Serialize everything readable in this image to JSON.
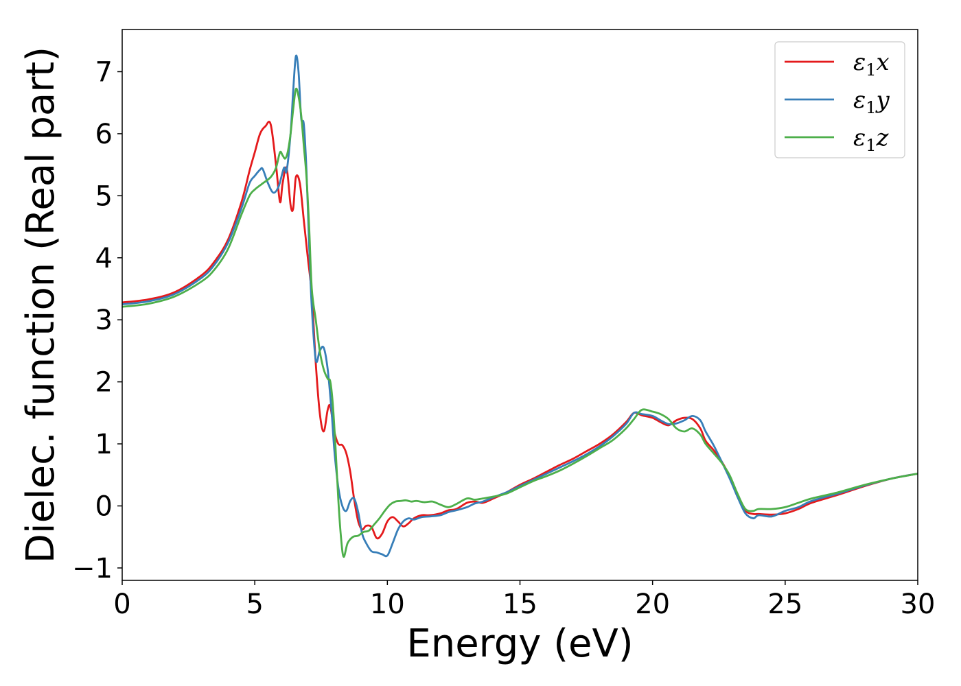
{
  "chart_data": {
    "type": "line",
    "xlabel": "Energy (eV)",
    "ylabel": "Dielec. function (Real part)",
    "xlim": [
      0,
      30
    ],
    "ylim": [
      -1.2,
      7.68
    ],
    "grid": false,
    "legend_position": "top-right",
    "x_ticks": [
      0,
      5,
      10,
      15,
      20,
      25,
      30
    ],
    "x_tick_labels": [
      "0",
      "5",
      "10",
      "15",
      "20",
      "25",
      "30"
    ],
    "y_ticks": [
      -1,
      0,
      1,
      2,
      3,
      4,
      5,
      6,
      7
    ],
    "y_tick_labels": [
      "−1",
      "0",
      "1",
      "2",
      "3",
      "4",
      "5",
      "6",
      "7"
    ],
    "series": [
      {
        "name": "ε₁x",
        "legend_base": "ε",
        "legend_sub": "1",
        "legend_suffix": "x",
        "color": "#e41a1c",
        "x": [
          0,
          1,
          2,
          3,
          3.5,
          4,
          4.5,
          4.8,
          5.0,
          5.2,
          5.4,
          5.6,
          5.8,
          5.95,
          6.05,
          6.2,
          6.35,
          6.45,
          6.55,
          6.7,
          6.85,
          7.0,
          7.15,
          7.3,
          7.45,
          7.6,
          7.75,
          7.85,
          8.0,
          8.15,
          8.3,
          8.45,
          8.6,
          8.75,
          8.9,
          9.05,
          9.2,
          9.4,
          9.6,
          9.8,
          10.0,
          10.2,
          10.4,
          10.6,
          10.8,
          11.0,
          11.3,
          11.6,
          12.0,
          12.3,
          12.6,
          13.0,
          13.3,
          13.6,
          14.0,
          14.5,
          15.0,
          15.5,
          16.0,
          16.5,
          17.0,
          17.5,
          18.0,
          18.5,
          19.0,
          19.3,
          19.6,
          20.0,
          20.3,
          20.6,
          20.9,
          21.2,
          21.5,
          21.8,
          22.0,
          22.3,
          22.6,
          22.9,
          23.2,
          23.5,
          23.8,
          24.0,
          24.5,
          25.0,
          25.5,
          26.0,
          27.0,
          28.0,
          29.0,
          30.0
        ],
        "values": [
          3.28,
          3.33,
          3.45,
          3.72,
          3.95,
          4.3,
          4.9,
          5.4,
          5.7,
          6.0,
          6.12,
          6.15,
          5.5,
          4.9,
          5.2,
          5.45,
          4.85,
          4.8,
          5.3,
          5.2,
          4.6,
          4.0,
          3.4,
          2.3,
          1.5,
          1.2,
          1.55,
          1.6,
          1.2,
          1.0,
          0.98,
          0.85,
          0.55,
          0.1,
          -0.25,
          -0.38,
          -0.32,
          -0.34,
          -0.52,
          -0.45,
          -0.25,
          -0.18,
          -0.25,
          -0.33,
          -0.28,
          -0.2,
          -0.15,
          -0.15,
          -0.12,
          -0.07,
          -0.05,
          0.05,
          0.07,
          0.05,
          0.12,
          0.22,
          0.34,
          0.44,
          0.55,
          0.66,
          0.76,
          0.88,
          1.0,
          1.15,
          1.35,
          1.5,
          1.46,
          1.42,
          1.35,
          1.3,
          1.38,
          1.42,
          1.4,
          1.25,
          1.05,
          0.9,
          0.72,
          0.48,
          0.15,
          -0.08,
          -0.13,
          -0.13,
          -0.14,
          -0.12,
          -0.05,
          0.05,
          0.18,
          0.32,
          0.44,
          0.52
        ]
      },
      {
        "name": "ε₁y",
        "legend_base": "ε",
        "legend_sub": "1",
        "legend_suffix": "y",
        "color": "#377eb8",
        "x": [
          0,
          1,
          2,
          3,
          3.5,
          4,
          4.5,
          4.8,
          5.0,
          5.2,
          5.3,
          5.5,
          5.7,
          5.9,
          6.1,
          6.2,
          6.35,
          6.45,
          6.55,
          6.65,
          6.75,
          6.85,
          6.95,
          7.05,
          7.15,
          7.3,
          7.45,
          7.6,
          7.75,
          7.9,
          8.0,
          8.15,
          8.3,
          8.45,
          8.6,
          8.75,
          8.9,
          9.05,
          9.2,
          9.4,
          9.6,
          9.8,
          10.0,
          10.2,
          10.4,
          10.6,
          10.8,
          11.0,
          11.3,
          11.6,
          12.0,
          12.3,
          12.6,
          13.0,
          13.3,
          13.6,
          14.0,
          14.5,
          15.0,
          15.5,
          16.0,
          16.5,
          17.0,
          17.5,
          18.0,
          18.5,
          19.0,
          19.3,
          19.6,
          20.0,
          20.3,
          20.6,
          20.9,
          21.2,
          21.5,
          21.8,
          22.0,
          22.3,
          22.6,
          22.9,
          23.2,
          23.5,
          23.8,
          24.0,
          24.5,
          25.0,
          25.5,
          26.0,
          27.0,
          28.0,
          29.0,
          30.0
        ],
        "values": [
          3.25,
          3.3,
          3.42,
          3.68,
          3.9,
          4.25,
          4.8,
          5.2,
          5.32,
          5.42,
          5.43,
          5.2,
          5.05,
          5.15,
          5.45,
          5.4,
          6.0,
          6.7,
          7.25,
          7.0,
          6.25,
          6.15,
          5.4,
          4.2,
          3.2,
          2.35,
          2.5,
          2.55,
          2.2,
          1.5,
          0.9,
          0.3,
          0.0,
          -0.08,
          0.08,
          0.12,
          -0.1,
          -0.45,
          -0.6,
          -0.73,
          -0.75,
          -0.78,
          -0.8,
          -0.6,
          -0.38,
          -0.25,
          -0.2,
          -0.22,
          -0.18,
          -0.17,
          -0.15,
          -0.1,
          -0.07,
          -0.02,
          0.04,
          0.07,
          0.14,
          0.22,
          0.32,
          0.42,
          0.52,
          0.62,
          0.72,
          0.83,
          0.96,
          1.12,
          1.32,
          1.5,
          1.48,
          1.45,
          1.38,
          1.32,
          1.33,
          1.38,
          1.45,
          1.38,
          1.2,
          0.98,
          0.72,
          0.45,
          0.15,
          -0.12,
          -0.2,
          -0.15,
          -0.17,
          -0.08,
          -0.02,
          0.08,
          0.2,
          0.33,
          0.44,
          0.52
        ]
      },
      {
        "name": "ε₁z",
        "legend_base": "ε",
        "legend_sub": "1",
        "legend_suffix": "z",
        "color": "#4daf4a",
        "x": [
          0,
          1,
          2,
          3,
          3.5,
          4,
          4.5,
          4.8,
          5.0,
          5.3,
          5.6,
          5.8,
          5.95,
          6.05,
          6.15,
          6.25,
          6.35,
          6.45,
          6.55,
          6.65,
          6.75,
          6.85,
          6.95,
          7.05,
          7.15,
          7.3,
          7.45,
          7.6,
          7.75,
          7.85,
          7.95,
          8.05,
          8.15,
          8.25,
          8.35,
          8.5,
          8.7,
          8.9,
          9.1,
          9.3,
          9.5,
          9.7,
          9.9,
          10.1,
          10.3,
          10.5,
          10.7,
          10.9,
          11.1,
          11.4,
          11.7,
          12.0,
          12.3,
          12.6,
          13.0,
          13.3,
          13.6,
          14.0,
          14.5,
          15.0,
          15.5,
          16.0,
          16.5,
          17.0,
          17.5,
          18.0,
          18.5,
          19.0,
          19.3,
          19.6,
          20.0,
          20.3,
          20.6,
          20.9,
          21.2,
          21.5,
          21.8,
          22.0,
          22.3,
          22.6,
          22.9,
          23.2,
          23.5,
          23.8,
          24.0,
          24.5,
          25.0,
          25.5,
          26.0,
          27.0,
          28.0,
          29.0,
          30.0
        ],
        "values": [
          3.21,
          3.26,
          3.38,
          3.62,
          3.82,
          4.15,
          4.7,
          5.0,
          5.1,
          5.2,
          5.3,
          5.45,
          5.7,
          5.65,
          5.6,
          5.72,
          6.0,
          6.4,
          6.72,
          6.6,
          6.3,
          5.8,
          5.3,
          4.5,
          3.5,
          3.0,
          2.5,
          2.2,
          2.05,
          2.0,
          1.6,
          0.9,
          0.1,
          -0.5,
          -0.82,
          -0.6,
          -0.5,
          -0.48,
          -0.42,
          -0.4,
          -0.3,
          -0.2,
          -0.08,
          0.02,
          0.07,
          0.08,
          0.09,
          0.07,
          0.08,
          0.06,
          0.07,
          0.02,
          -0.02,
          0.03,
          0.12,
          0.1,
          0.12,
          0.15,
          0.2,
          0.3,
          0.4,
          0.48,
          0.57,
          0.68,
          0.8,
          0.93,
          1.06,
          1.25,
          1.4,
          1.55,
          1.52,
          1.48,
          1.4,
          1.25,
          1.2,
          1.25,
          1.15,
          1.0,
          0.85,
          0.7,
          0.5,
          0.2,
          -0.05,
          -0.08,
          -0.05,
          -0.05,
          -0.02,
          0.05,
          0.12,
          0.22,
          0.34,
          0.44,
          0.52
        ]
      }
    ]
  }
}
